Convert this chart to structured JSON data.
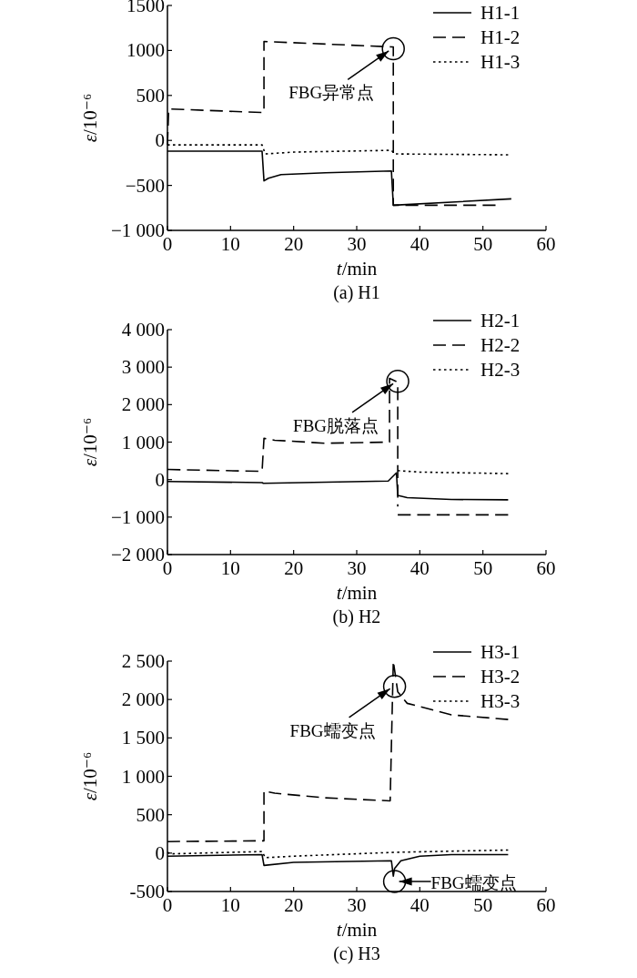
{
  "chart_data": [
    {
      "type": "line",
      "title": "(a) H1",
      "xlabel": "t/min",
      "ylabel": "ε/10⁻⁶",
      "xlim": [
        0,
        60
      ],
      "xticks": [
        0,
        10,
        20,
        30,
        40,
        50,
        60
      ],
      "ylim": [
        -1000,
        1500
      ],
      "yticks": [
        {
          "value": -1000,
          "label": "−1 000"
        },
        {
          "value": -500,
          "label": "−500"
        },
        0,
        500,
        1000,
        1500
      ],
      "legend": "top right",
      "grid": false,
      "marker": "none",
      "series": [
        {
          "name": "H1-1",
          "color": "#000000",
          "line_style": "solid",
          "x": [
            0,
            15,
            15.3,
            16,
            18,
            25,
            35.5,
            35.8,
            54.5
          ],
          "values": [
            -120,
            -120,
            -450,
            -420,
            -380,
            -360,
            -340,
            -720,
            -650
          ]
        },
        {
          "name": "H1-2",
          "color": "#000000",
          "line_style": "dashed",
          "x": [
            0,
            0.2,
            15,
            15.3,
            15.3,
            35.5,
            35.8,
            35.8,
            52
          ],
          "values": [
            -50,
            350,
            310,
            310,
            1100,
            1040,
            1040,
            -720,
            -720
          ]
        },
        {
          "name": "H1-3",
          "color": "#000000",
          "line_style": "dotted",
          "x": [
            0,
            15,
            15.5,
            20,
            35.5,
            36,
            54
          ],
          "values": [
            -50,
            -50,
            -150,
            -130,
            -110,
            -150,
            -160
          ]
        }
      ],
      "annotations": [
        {
          "text": "FBG异常点",
          "x": 35.8,
          "y": 1020
        }
      ]
    },
    {
      "type": "line",
      "title": "(b) H2",
      "xlabel": "t/min",
      "ylabel": "ε/10⁻⁶",
      "xlim": [
        0,
        60
      ],
      "xticks": [
        0,
        10,
        20,
        30,
        40,
        50,
        60
      ],
      "ylim": [
        -2000,
        4000
      ],
      "yticks": [
        {
          "value": -2000,
          "label": "−2 000"
        },
        {
          "value": -1000,
          "label": "−1 000"
        },
        0,
        {
          "value": 1000,
          "label": "1 000"
        },
        {
          "value": 2000,
          "label": "2 000"
        },
        {
          "value": 3000,
          "label": "3 000"
        },
        {
          "value": 4000,
          "label": "4 000"
        }
      ],
      "legend": "top right",
      "grid": false,
      "marker": "none",
      "series": [
        {
          "name": "H2-1",
          "color": "#000000",
          "line_style": "solid",
          "x": [
            0,
            15,
            15.2,
            35,
            36.3,
            36.5,
            38,
            45,
            54
          ],
          "values": [
            -50,
            -80,
            -100,
            -40,
            180,
            -420,
            -480,
            -530,
            -540
          ]
        },
        {
          "name": "H2-2",
          "color": "#000000",
          "line_style": "dashed",
          "x": [
            0,
            15,
            15.3,
            17,
            25,
            35,
            35.2,
            35.2,
            36.5,
            36.5,
            null,
            36.5,
            54
          ],
          "values": [
            270,
            220,
            1100,
            1050,
            970,
            1000,
            1000,
            2700,
            2600,
            -720,
            null,
            -940,
            -940
          ]
        },
        {
          "name": "H2-3",
          "color": "#000000",
          "line_style": "dotted",
          "x": [
            36.5,
            40,
            54
          ],
          "values": [
            240,
            200,
            160
          ]
        }
      ],
      "annotations": [
        {
          "text": "FBG脱落点",
          "x": 36.5,
          "y": 2620
        }
      ]
    },
    {
      "type": "line",
      "title": "(c) H3",
      "xlabel": "t/min",
      "ylabel": "ε/10⁻⁶",
      "xlim": [
        0,
        60
      ],
      "xticks": [
        0,
        10,
        20,
        30,
        40,
        50,
        60
      ],
      "ylim": [
        -500,
        2500
      ],
      "yticks": [
        -500,
        0,
        500,
        {
          "value": 1000,
          "label": "1 000"
        },
        {
          "value": 1500,
          "label": "1 500"
        },
        {
          "value": 2000,
          "label": "2 000"
        },
        {
          "value": 2500,
          "label": "2 500"
        }
      ],
      "legend": "top right",
      "grid": false,
      "marker": "none",
      "series": [
        {
          "name": "H3-1",
          "color": "#000000",
          "line_style": "solid",
          "x": [
            0,
            15,
            15.3,
            20,
            35.5,
            35.8,
            36,
            37,
            40,
            45,
            54
          ],
          "values": [
            -40,
            -20,
            -160,
            -120,
            -100,
            -300,
            -200,
            -100,
            -40,
            -20,
            -20
          ]
        },
        {
          "name": "H3-2",
          "color": "#000000",
          "line_style": "dashed",
          "x": [
            0,
            15.3,
            15.3,
            17,
            25,
            35.3,
            35.8,
            36.5,
            38,
            45,
            54
          ],
          "values": [
            150,
            160,
            810,
            780,
            720,
            680,
            2500,
            2100,
            1950,
            1800,
            1740
          ]
        },
        {
          "name": "H3-3",
          "color": "#000000",
          "line_style": "dotted",
          "x": [
            0,
            0.5,
            15,
            15.5,
            20,
            36,
            54
          ],
          "values": [
            10,
            -10,
            20,
            -60,
            -40,
            10,
            40
          ]
        }
      ],
      "annotations": [
        {
          "text": "FBG蠕变点",
          "x": 36,
          "y": 2170
        },
        {
          "text": "FBG蠕变点",
          "x": 36,
          "y": -370
        }
      ]
    }
  ]
}
